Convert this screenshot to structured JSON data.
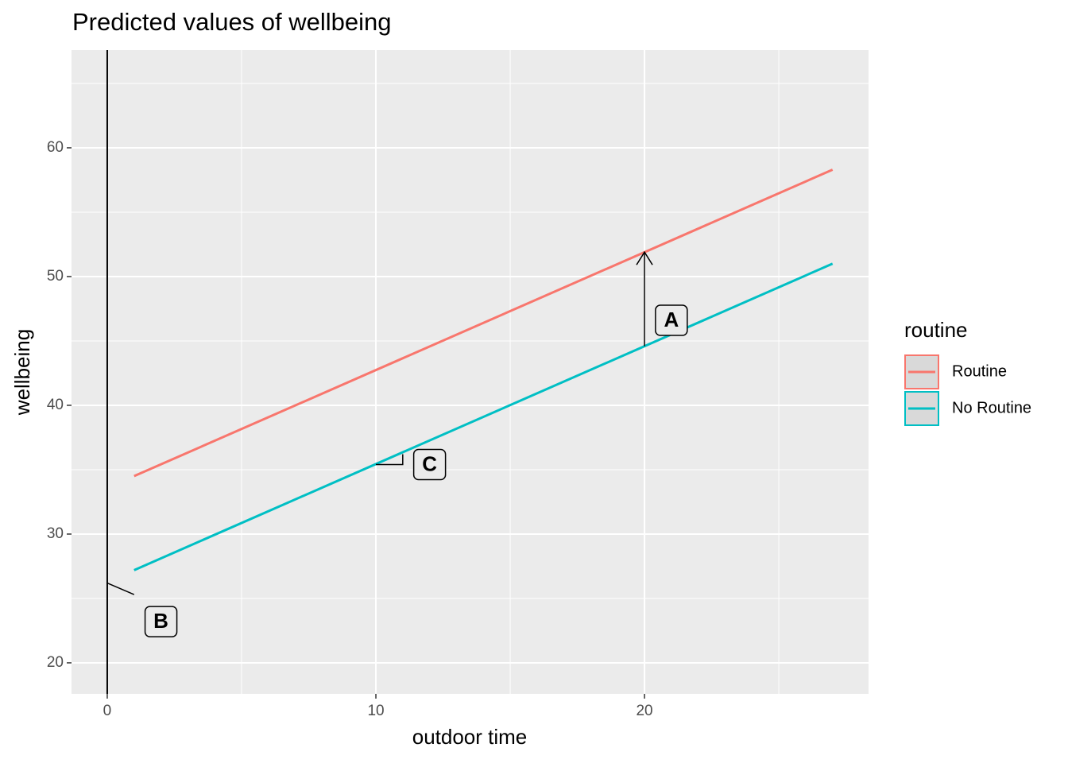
{
  "chart_data": {
    "type": "line",
    "title": "Predicted values of wellbeing",
    "x_label": "outdoor time",
    "y_label": "wellbeing",
    "x": [
      1,
      27
    ],
    "series": [
      {
        "name": "Routine",
        "color": "#F8766D",
        "values": [
          34.5,
          58.3
        ]
      },
      {
        "name": "No Routine",
        "color": "#00BFC4",
        "values": [
          27.2,
          51.0
        ]
      }
    ],
    "legend_title": "routine",
    "legend_position": "right",
    "xlim": [
      -1.33,
      28.34
    ],
    "ylim": [
      17.59,
      67.59
    ],
    "xticks": [
      0,
      10,
      20
    ],
    "yticks": [
      20,
      30,
      40,
      50,
      60
    ],
    "grid": true,
    "vline": 0,
    "segments": [
      {
        "x": [
          20,
          20
        ],
        "y": [
          44.6,
          51.9
        ],
        "arrow": true
      },
      {
        "x": [
          0,
          1
        ],
        "y": [
          26.2,
          25.3
        ],
        "arrow": false
      },
      {
        "x": [
          10,
          11,
          11
        ],
        "y": [
          35.4,
          35.4,
          36.2
        ],
        "arrow": false
      }
    ],
    "annotations": [
      {
        "label": "A",
        "x": 21,
        "y": 46.6
      },
      {
        "label": "B",
        "x": 2,
        "y": 23.2
      },
      {
        "label": "C",
        "x": 12,
        "y": 35.4
      }
    ]
  }
}
